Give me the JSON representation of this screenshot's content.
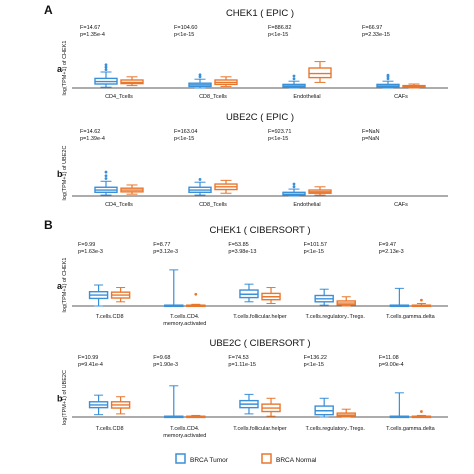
{
  "section_labels": [
    "A",
    "B"
  ],
  "legend": [
    {
      "label": "BRCA Tumor",
      "color": "#3a8fd9"
    },
    {
      "label": "BRCA Normal",
      "color": "#e8772e"
    }
  ],
  "colors": {
    "tumor": "#3a8fd9",
    "normal": "#e8772e"
  },
  "chart_data": [
    {
      "type": "box",
      "panel_label": "a",
      "title": "CHEK1 ( EPIC )",
      "ylabel": "log(TPM+1) of CHEK1",
      "categories": [
        "CD4_Tcells",
        "CD8_Tcells",
        "Endothelial",
        "CAFs"
      ],
      "stats": [
        {
          "F": "F=14.67",
          "p": "p=1.35e-4"
        },
        {
          "F": "F=104.60",
          "p": "p<1e-15"
        },
        {
          "F": "F=886.82",
          "p": "p<1e-15"
        },
        {
          "F": "F=66.97",
          "p": "p=2.33e-15"
        }
      ],
      "ylim": [
        0,
        1
      ],
      "series": [
        {
          "name": "BRCA Tumor",
          "boxes": [
            {
              "min": 0.02,
              "q1": 0.1,
              "median": 0.16,
              "q3": 0.24,
              "max": 0.4,
              "outliers": [
                0.46,
                0.52,
                0.58
              ]
            },
            {
              "min": 0.0,
              "q1": 0.04,
              "median": 0.08,
              "q3": 0.12,
              "max": 0.22,
              "outliers": [
                0.28,
                0.33
              ]
            },
            {
              "min": 0.0,
              "q1": 0.02,
              "median": 0.05,
              "q3": 0.09,
              "max": 0.17,
              "outliers": [
                0.23,
                0.3
              ]
            },
            {
              "min": 0.0,
              "q1": 0.02,
              "median": 0.05,
              "q3": 0.09,
              "max": 0.17,
              "outliers": [
                0.23,
                0.28,
                0.32
              ]
            }
          ]
        },
        {
          "name": "BRCA Normal",
          "boxes": [
            {
              "min": 0.06,
              "q1": 0.11,
              "median": 0.14,
              "q3": 0.2,
              "max": 0.28,
              "outliers": []
            },
            {
              "min": 0.04,
              "q1": 0.09,
              "median": 0.14,
              "q3": 0.2,
              "max": 0.28,
              "outliers": []
            },
            {
              "min": 0.14,
              "q1": 0.26,
              "median": 0.36,
              "q3": 0.5,
              "max": 0.66,
              "outliers": []
            },
            {
              "min": 0.0,
              "q1": 0.02,
              "median": 0.04,
              "q3": 0.06,
              "max": 0.1,
              "outliers": []
            }
          ]
        }
      ]
    },
    {
      "type": "box",
      "panel_label": "b",
      "title": "UBE2C ( EPIC )",
      "ylabel": "log(TPM+1) of UBE2C",
      "categories": [
        "CD4_Tcells",
        "CD8_Tcells",
        "Endothelial",
        "CAFs"
      ],
      "stats": [
        {
          "F": "F=14.62",
          "p": "p=1.39e-4"
        },
        {
          "F": "F=163.04",
          "p": "p<1e-15"
        },
        {
          "F": "F=923.71",
          "p": "p<1e-15"
        },
        {
          "F": "F=NaN",
          "p": "p=NaN"
        }
      ],
      "ylim": [
        0,
        1
      ],
      "series": [
        {
          "name": "BRCA Tumor",
          "boxes": [
            {
              "min": 0.02,
              "q1": 0.08,
              "median": 0.13,
              "q3": 0.19,
              "max": 0.32,
              "outliers": [
                0.38,
                0.44,
                0.52
              ]
            },
            {
              "min": 0.02,
              "q1": 0.08,
              "median": 0.13,
              "q3": 0.19,
              "max": 0.3,
              "outliers": [
                0.36
              ]
            },
            {
              "min": 0.0,
              "q1": 0.02,
              "median": 0.04,
              "q3": 0.08,
              "max": 0.15,
              "outliers": [
                0.2,
                0.26
              ]
            },
            null
          ]
        },
        {
          "name": "BRCA Normal",
          "boxes": [
            {
              "min": 0.04,
              "q1": 0.09,
              "median": 0.13,
              "q3": 0.17,
              "max": 0.24,
              "outliers": []
            },
            {
              "min": 0.06,
              "q1": 0.14,
              "median": 0.2,
              "q3": 0.26,
              "max": 0.34,
              "outliers": []
            },
            {
              "min": 0.02,
              "q1": 0.06,
              "median": 0.09,
              "q3": 0.13,
              "max": 0.2,
              "outliers": []
            },
            null
          ]
        }
      ]
    },
    {
      "type": "box",
      "panel_label": "a",
      "title": "CHEK1 ( CIBERSORT )",
      "ylabel": "log(TPM+1) of CHEK1",
      "categories": [
        "T.cells.CD8",
        "T.cells.CD4.\nmemory.activated",
        "T.cells.follicular.helper",
        "T.cells.regulatory..Tregs.",
        "T.cells.gamma.delta"
      ],
      "stats": [
        {
          "F": "F=9.99",
          "p": "p=1.63e-3"
        },
        {
          "F": "F=8.77",
          "p": "p=3.12e-3"
        },
        {
          "F": "F=53.85",
          "p": "p=3.98e-13"
        },
        {
          "F": "F=101.57",
          "p": "p<1e-15"
        },
        {
          "F": "F=9.47",
          "p": "p=2.13e-3"
        }
      ],
      "ylim": [
        0,
        1
      ],
      "series": [
        {
          "name": "BRCA Tumor",
          "boxes": [
            {
              "min": 0.0,
              "q1": 0.18,
              "median": 0.26,
              "q3": 0.34,
              "max": 0.5,
              "outliers": []
            },
            {
              "min": 0.0,
              "q1": 0.0,
              "median": 0.0,
              "q3": 0.02,
              "max": 0.86,
              "outliers": []
            },
            {
              "min": 0.1,
              "q1": 0.2,
              "median": 0.28,
              "q3": 0.38,
              "max": 0.52,
              "outliers": []
            },
            {
              "min": 0.02,
              "q1": 0.1,
              "median": 0.17,
              "q3": 0.25,
              "max": 0.4,
              "outliers": []
            },
            {
              "min": 0.0,
              "q1": 0.0,
              "median": 0.0,
              "q3": 0.02,
              "max": 0.42,
              "outliers": []
            }
          ]
        },
        {
          "name": "BRCA Normal",
          "boxes": [
            {
              "min": 0.1,
              "q1": 0.19,
              "median": 0.26,
              "q3": 0.33,
              "max": 0.44,
              "outliers": []
            },
            {
              "min": 0.0,
              "q1": 0.0,
              "median": 0.0,
              "q3": 0.02,
              "max": 0.04,
              "outliers": [
                0.28
              ]
            },
            {
              "min": 0.06,
              "q1": 0.15,
              "median": 0.22,
              "q3": 0.3,
              "max": 0.44,
              "outliers": []
            },
            {
              "min": 0.0,
              "q1": 0.03,
              "median": 0.07,
              "q3": 0.12,
              "max": 0.22,
              "outliers": []
            },
            {
              "min": 0.0,
              "q1": 0.0,
              "median": 0.0,
              "q3": 0.02,
              "max": 0.06,
              "outliers": [
                0.14
              ]
            }
          ]
        }
      ]
    },
    {
      "type": "box",
      "panel_label": "b",
      "title": "UBE2C ( CIBERSORT )",
      "ylabel": "log(TPM+1) of UBE2C",
      "categories": [
        "T.cells.CD8",
        "T.cells.CD4.\nmemory.activated",
        "T.cells.follicular.helper",
        "T.cells.regulatory..Tregs.",
        "T.cells.gamma.delta"
      ],
      "stats": [
        {
          "F": "F=10.99",
          "p": "p=9.41e-4"
        },
        {
          "F": "F=9.68",
          "p": "p=1.90e-3"
        },
        {
          "F": "F=74.53",
          "p": "p=1.11e-15"
        },
        {
          "F": "F=136.22",
          "p": "p<1e-15"
        },
        {
          "F": "F=11.08",
          "p": "p=9.00e-4"
        }
      ],
      "ylim": [
        0,
        1
      ],
      "series": [
        {
          "name": "BRCA Tumor",
          "boxes": [
            {
              "min": 0.06,
              "q1": 0.24,
              "median": 0.31,
              "q3": 0.39,
              "max": 0.56,
              "outliers": []
            },
            {
              "min": 0.0,
              "q1": 0.0,
              "median": 0.0,
              "q3": 0.02,
              "max": 0.8,
              "outliers": []
            },
            {
              "min": 0.08,
              "q1": 0.24,
              "median": 0.33,
              "q3": 0.42,
              "max": 0.58,
              "outliers": []
            },
            {
              "min": 0.0,
              "q1": 0.06,
              "median": 0.16,
              "q3": 0.28,
              "max": 0.48,
              "outliers": []
            },
            {
              "min": 0.0,
              "q1": 0.0,
              "median": 0.0,
              "q3": 0.02,
              "max": 0.62,
              "outliers": []
            }
          ]
        },
        {
          "name": "BRCA Normal",
          "boxes": [
            {
              "min": 0.08,
              "q1": 0.23,
              "median": 0.31,
              "q3": 0.39,
              "max": 0.52,
              "outliers": []
            },
            {
              "min": 0.0,
              "q1": 0.0,
              "median": 0.0,
              "q3": 0.02,
              "max": 0.04,
              "outliers": []
            },
            {
              "min": 0.02,
              "q1": 0.14,
              "median": 0.23,
              "q3": 0.33,
              "max": 0.48,
              "outliers": []
            },
            {
              "min": 0.0,
              "q1": 0.02,
              "median": 0.05,
              "q3": 0.1,
              "max": 0.2,
              "outliers": []
            },
            {
              "min": 0.0,
              "q1": 0.0,
              "median": 0.0,
              "q3": 0.02,
              "max": 0.04,
              "outliers": [
                0.14
              ]
            }
          ]
        }
      ]
    }
  ]
}
